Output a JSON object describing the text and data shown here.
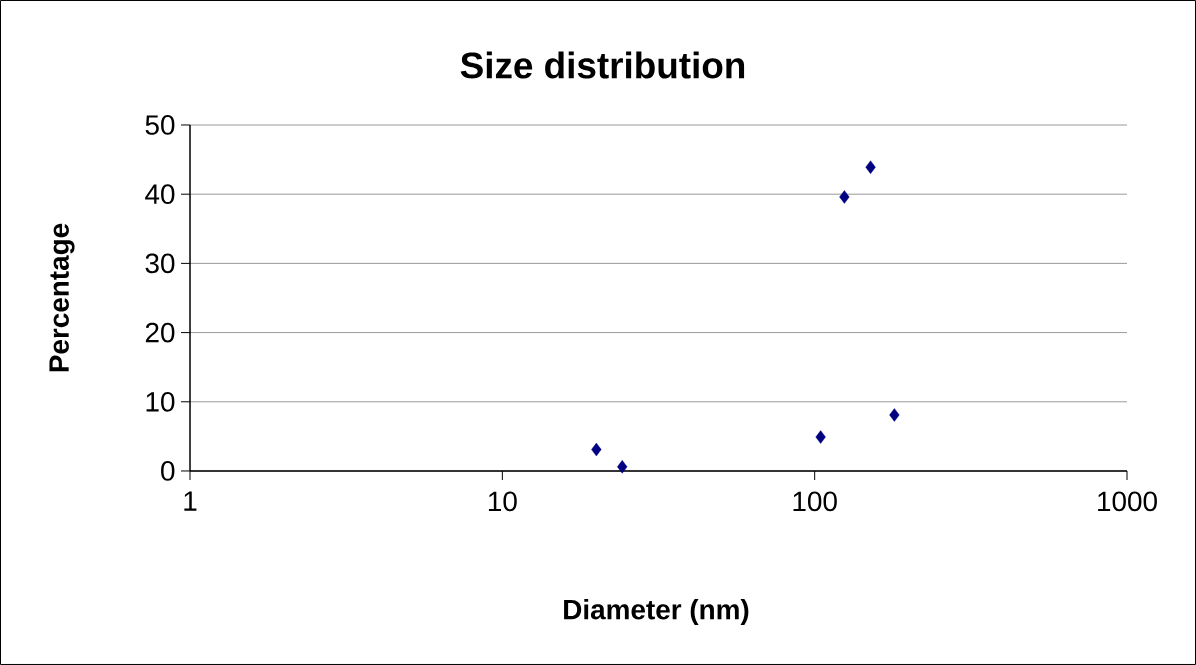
{
  "chart_data": {
    "type": "scatter",
    "title": "Size distribution",
    "xlabel": "Diameter (nm)",
    "ylabel": "Percentage",
    "log": "x",
    "xlim": [
      1,
      1000
    ],
    "xticks": [
      1,
      10,
      100,
      1000
    ],
    "ylim": [
      0,
      50
    ],
    "yticks": [
      0,
      10,
      20,
      30,
      40,
      50
    ],
    "grid": "y",
    "marker": "diamond",
    "series": [
      {
        "color": "#000080",
        "x": [
          20.0,
          24.2,
          104.5,
          124.5,
          151,
          180
        ],
        "values": [
          3.1,
          0.6,
          4.9,
          39.6,
          43.9,
          8.1
        ]
      }
    ]
  }
}
